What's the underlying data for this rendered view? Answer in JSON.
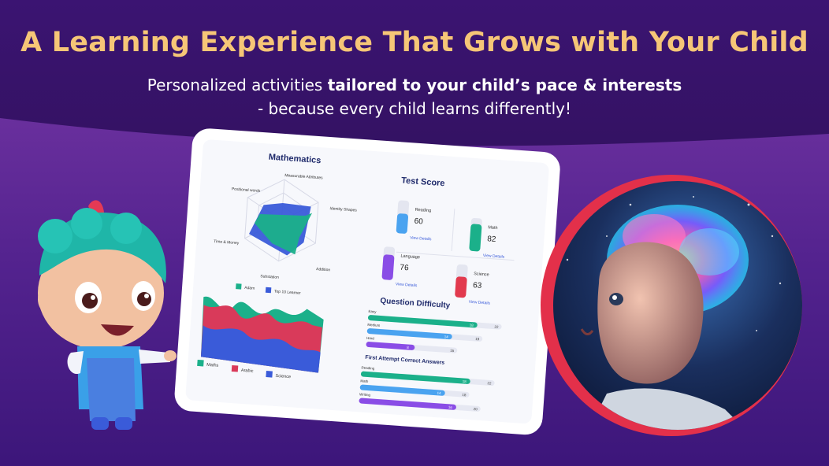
{
  "headline": "A Learning Experience That Grows with Your Child",
  "subtitle": {
    "line1_prefix": "Personalized activities ",
    "line1_bold": "tailored to your child’s pace & interests",
    "line2": "- because every child learns differently!"
  },
  "dashboard": {
    "math": {
      "title": "Mathematics",
      "axes": [
        "Measurable Attributes",
        "Identity Shapes",
        "Addition",
        "Substation",
        "Time & Money",
        "Positional words"
      ],
      "legend": [
        "Adam",
        "Top 10 Learner"
      ]
    },
    "area_chart": {
      "legend": [
        "Maths",
        "Arabic",
        "Science"
      ]
    },
    "test_score": {
      "title": "Test Score",
      "items": [
        {
          "label": "Reading",
          "value": "60",
          "link": "View Details",
          "level": 0.6,
          "color": "#4aa3f0"
        },
        {
          "label": "Math",
          "value": "82",
          "link": "View Details",
          "level": 0.82,
          "color": "#1bb08a"
        },
        {
          "label": "Language",
          "value": "76",
          "link": "View Details",
          "level": 0.76,
          "color": "#8a4de6"
        },
        {
          "label": "Science",
          "value": "63",
          "link": "View Details",
          "level": 0.63,
          "color": "#e23a4e"
        }
      ]
    },
    "question_difficulty": {
      "title": "Question Difficulty",
      "bars": [
        {
          "label": "Easy",
          "value": "18",
          "total": "22",
          "color": "#1bb08a"
        },
        {
          "label": "Medium",
          "value": "14",
          "total": "19",
          "color": "#4aa3f0"
        },
        {
          "label": "Hard",
          "value": "8",
          "total": "15",
          "color": "#8a4de6"
        }
      ]
    },
    "first_attempt": {
      "title": "First Attempt Correct Answers",
      "bars": [
        {
          "label": "Reading",
          "value": "18",
          "total": "22",
          "color": "#1bb08a"
        },
        {
          "label": "Math",
          "value": "14",
          "total": "18",
          "color": "#4aa3f0"
        },
        {
          "label": "Writing",
          "value": "16",
          "total": "20",
          "color": "#8a4de6"
        }
      ]
    }
  },
  "colors": {
    "headline": "#f6c677",
    "bg_top": "#3a1470",
    "bg_wave": "#7a3aa8",
    "accent_red": "#e23a4e"
  }
}
